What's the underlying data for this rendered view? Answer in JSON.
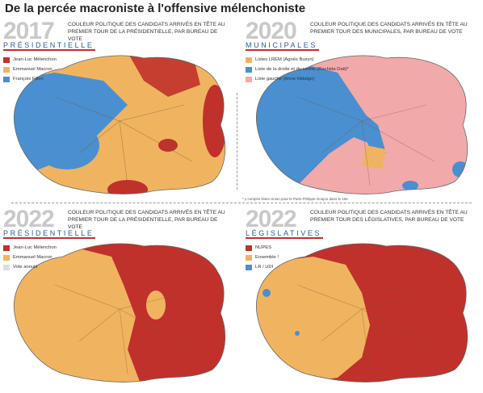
{
  "title": "De la percée macroniste à l'offensive mélenchoniste",
  "panels": [
    {
      "year": "2017",
      "election": "PRÉSIDENTIELLE",
      "description": "COULEUR POLITIQUE DES CANDIDATS ARRIVÉS EN TÊTE AU PREMIER TOUR DE LA PRÉSIDENTIELLE, PAR BUREAU DE VOTE",
      "legend": [
        {
          "label": "Jean-Luc Mélenchon",
          "color": "#c0312b"
        },
        {
          "label": "Emmanuel Macron",
          "color": "#f0b461"
        },
        {
          "label": "François Fillon",
          "color": "#4a8fd0"
        }
      ]
    },
    {
      "year": "2020",
      "election": "MUNICIPALES",
      "description": "COULEUR POLITIQUE DES CANDIDATS ARRIVÉS EN TÊTE AU PREMIER TOUR DES MUNICIPALES, PAR BUREAU DE VOTE",
      "legend": [
        {
          "label": "Listes LREM (Agnès Buzyn)",
          "color": "#f0b461"
        },
        {
          "label": "Liste de la droite et du centre (Rachida Dati)*",
          "color": "#4a8fd0"
        },
        {
          "label": "Liste gauche (Anne Hidalgo)",
          "color": "#f2a9aa"
        }
      ],
      "note": "* y compris listes Union pour le Paris Philippe Goujon dans le 15e"
    },
    {
      "year": "2022",
      "election": "PRÉSIDENTIELLE",
      "description": "COULEUR POLITIQUE DES CANDIDATS ARRIVÉS EN TÊTE AU PREMIER TOUR DE LA PRÉSIDENTIELLE, PAR BUREAU DE VOTE",
      "legend": [
        {
          "label": "Jean-Luc Mélenchon",
          "color": "#c0312b"
        },
        {
          "label": "Emmanuel Macron",
          "color": "#f0b461"
        },
        {
          "label": "Vote annulé",
          "color": "#dddddd"
        }
      ]
    },
    {
      "year": "2022",
      "election": "LÉGISLATIVES",
      "description": "COULEUR POLITIQUE DES CANDIDATS ARRIVÉS EN TÊTE AU PREMIER TOUR DES LÉGISLATIVES, PAR BUREAU DE VOTE",
      "legend": [
        {
          "label": "NUPES",
          "color": "#c0312b"
        },
        {
          "label": "Ensemble !",
          "color": "#f0b461"
        },
        {
          "label": "LR / UDI",
          "color": "#4a8fd0"
        }
      ]
    }
  ]
}
